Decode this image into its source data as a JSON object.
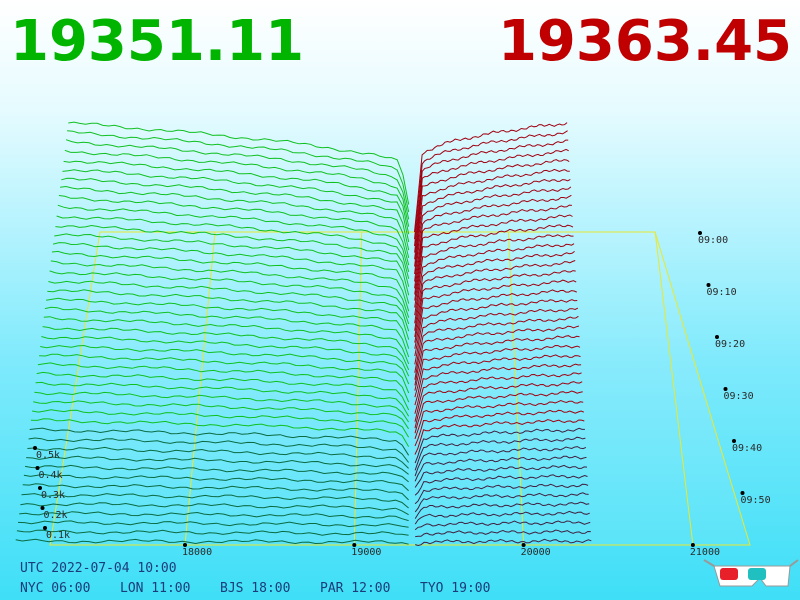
{
  "bid": "19351.11",
  "ask": "19363.45",
  "price_axis": [
    "18000",
    "19000",
    "20000",
    "21000"
  ],
  "volume_axis": [
    "0.1k",
    "0.2k",
    "0.3k",
    "0.4k",
    "0.5k"
  ],
  "time_axis": [
    "09:00",
    "09:10",
    "09:20",
    "09:30",
    "09:40",
    "09:50"
  ],
  "footer": {
    "utc": "UTC 2022-07-04 10:00",
    "zones": [
      "NYC 06:00",
      "LON 11:00",
      "BJS 18:00",
      "PAR 12:00",
      "TYO 19:00"
    ]
  }
}
